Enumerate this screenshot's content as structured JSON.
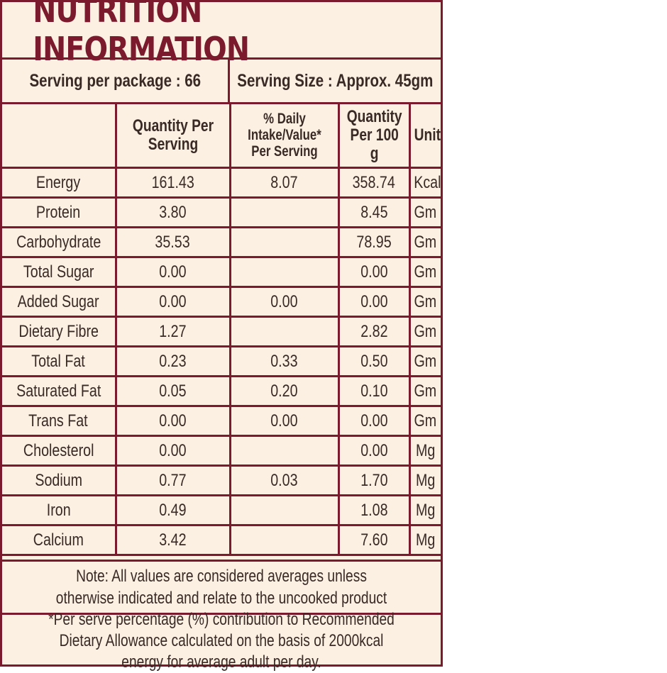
{
  "title": "NUTRITION INFORMATION",
  "serving": {
    "per_package": "Serving per package : 66",
    "size": "Serving Size : Approx. 45gm"
  },
  "headers": {
    "nutrient": "",
    "qty_serving": "Quantity Per Serving",
    "daily": "% Daily Intake/Value* Per Serving",
    "qty_100g": "Quantity Per 100 g",
    "unit": "Unit"
  },
  "rows": [
    {
      "nutrient": "Energy",
      "qty_serving": "161.43",
      "daily": "8.07",
      "qty_100g": "358.74",
      "unit": "Kcal"
    },
    {
      "nutrient": "Protein",
      "qty_serving": "3.80",
      "daily": "",
      "qty_100g": "8.45",
      "unit": "Gm"
    },
    {
      "nutrient": "Carbohydrate",
      "qty_serving": "35.53",
      "daily": "",
      "qty_100g": "78.95",
      "unit": "Gm"
    },
    {
      "nutrient": "Total Sugar",
      "qty_serving": "0.00",
      "daily": "",
      "qty_100g": "0.00",
      "unit": "Gm"
    },
    {
      "nutrient": "Added Sugar",
      "qty_serving": "0.00",
      "daily": "0.00",
      "qty_100g": "0.00",
      "unit": "Gm"
    },
    {
      "nutrient": "Dietary Fibre",
      "qty_serving": "1.27",
      "daily": "",
      "qty_100g": "2.82",
      "unit": "Gm"
    },
    {
      "nutrient": "Total Fat",
      "qty_serving": "0.23",
      "daily": "0.33",
      "qty_100g": "0.50",
      "unit": "Gm"
    },
    {
      "nutrient": "Saturated Fat",
      "qty_serving": "0.05",
      "daily": "0.20",
      "qty_100g": "0.10",
      "unit": "Gm"
    },
    {
      "nutrient": "Trans Fat",
      "qty_serving": "0.00",
      "daily": "0.00",
      "qty_100g": "0.00",
      "unit": "Gm"
    },
    {
      "nutrient": "Cholesterol",
      "qty_serving": "0.00",
      "daily": "",
      "qty_100g": "0.00",
      "unit": "Mg"
    },
    {
      "nutrient": "Sodium",
      "qty_serving": "0.77",
      "daily": "0.03",
      "qty_100g": "1.70",
      "unit": "Mg"
    },
    {
      "nutrient": "Iron",
      "qty_serving": "0.49",
      "daily": "",
      "qty_100g": "1.08",
      "unit": "Mg"
    },
    {
      "nutrient": "Calcium",
      "qty_serving": "3.42",
      "daily": "",
      "qty_100g": "7.60",
      "unit": "Mg"
    }
  ],
  "note": "Note: All values are considered averages unless otherwise indicated and relate to the uncooked product",
  "footnote": "*Per serve percentage (%) contribution to Recommended Dietary Allowance calculated on the basis of 2000kcal energy for average adult per day.",
  "colors": {
    "accent": "#7a1a2c",
    "background": "#fbf0e2",
    "text": "#3a2a26"
  }
}
